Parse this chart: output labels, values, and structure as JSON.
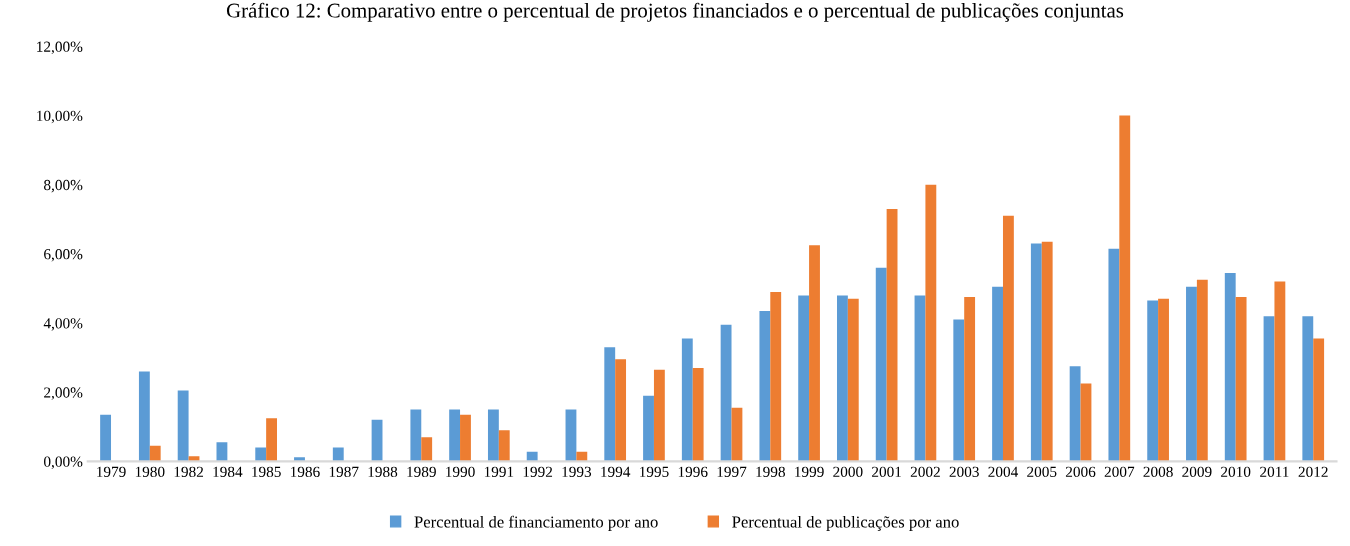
{
  "chart_data": {
    "type": "bar",
    "title": "Gráfico 12: Comparativo entre o percentual de projetos financiados e o percentual de publicações conjuntas",
    "categories": [
      "1979",
      "1980",
      "1982",
      "1984",
      "1985",
      "1986",
      "1987",
      "1988",
      "1989",
      "1990",
      "1991",
      "1992",
      "1993",
      "1994",
      "1995",
      "1996",
      "1997",
      "1998",
      "1999",
      "2000",
      "2001",
      "2002",
      "2003",
      "2004",
      "2005",
      "2006",
      "2007",
      "2008",
      "2009",
      "2010",
      "2011",
      "2012"
    ],
    "series": [
      {
        "name": "Percentual de financiamento por ano",
        "color": "#5b9bd5",
        "values": [
          1.35,
          2.6,
          2.05,
          0.55,
          0.4,
          0.12,
          0.4,
          1.2,
          1.5,
          1.5,
          1.5,
          0.28,
          1.5,
          3.3,
          1.9,
          3.55,
          3.95,
          4.35,
          4.8,
          4.8,
          5.6,
          4.8,
          4.1,
          5.05,
          6.3,
          2.75,
          6.15,
          4.65,
          5.05,
          5.45,
          4.2,
          4.2
        ]
      },
      {
        "name": "Percentual de publicações por ano",
        "color": "#ed7d31",
        "values": [
          0,
          0.45,
          0.15,
          0,
          1.25,
          0,
          0,
          0,
          0.7,
          1.35,
          0.9,
          0,
          0.28,
          2.95,
          2.65,
          2.7,
          1.55,
          4.9,
          6.25,
          4.7,
          7.3,
          8.0,
          4.75,
          7.1,
          6.35,
          2.25,
          10.0,
          4.7,
          5.25,
          4.75,
          5.2,
          3.55
        ]
      }
    ],
    "ylim": [
      0,
      12
    ],
    "yticks": [
      {
        "value": 0,
        "label": "0,00%"
      },
      {
        "value": 2,
        "label": "2,00%"
      },
      {
        "value": 4,
        "label": "4,00%"
      },
      {
        "value": 6,
        "label": "6,00%"
      },
      {
        "value": 8,
        "label": "8,00%"
      },
      {
        "value": 10,
        "label": "10,00%"
      },
      {
        "value": 12,
        "label": "12,00%"
      }
    ],
    "grid": false,
    "legend": "bottom"
  }
}
